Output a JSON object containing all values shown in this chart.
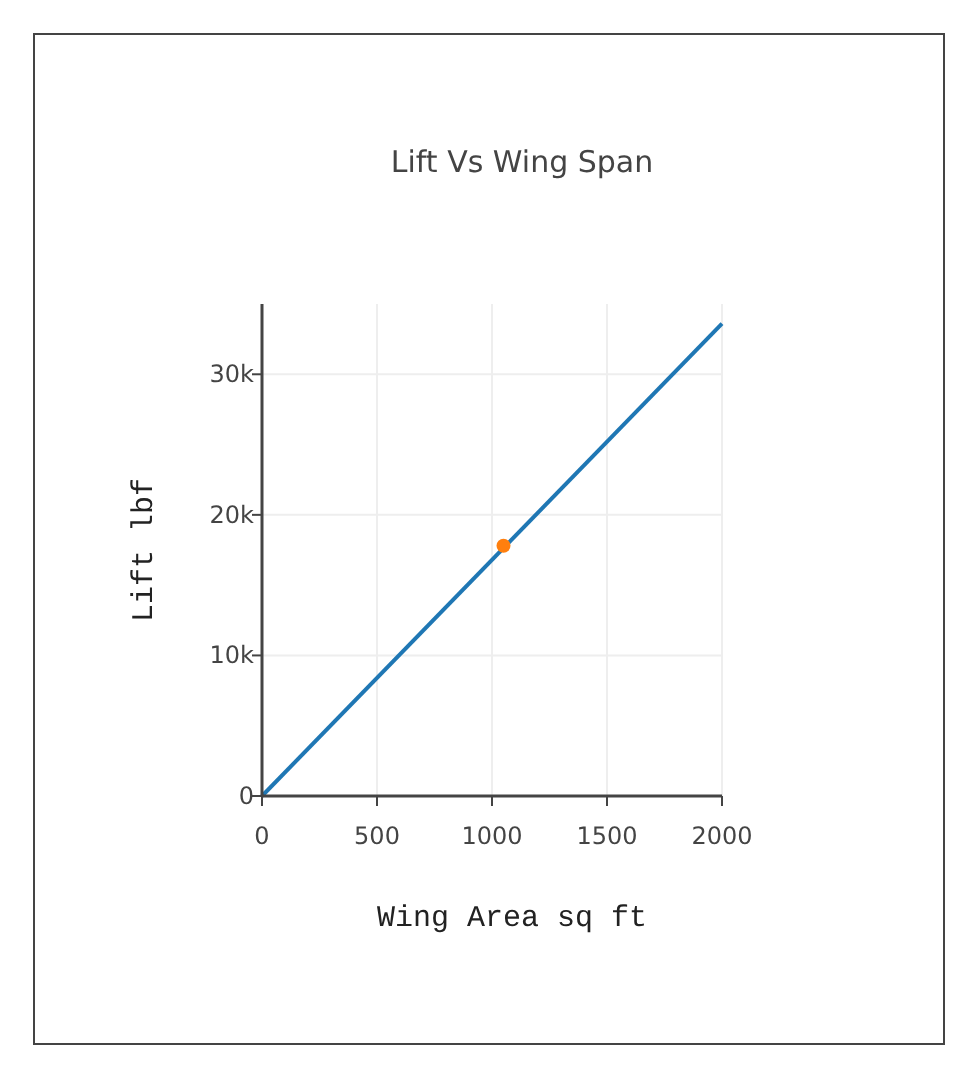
{
  "chart_data": {
    "type": "line",
    "title": "Lift Vs Wing Span",
    "xlabel": "Wing Area sq ft",
    "ylabel": "Lift lbf",
    "xlim": [
      0,
      2000
    ],
    "ylim": [
      0,
      35000
    ],
    "xticks": [
      0,
      500,
      1000,
      1500,
      2000
    ],
    "yticks": [
      {
        "value": 0,
        "label": "0"
      },
      {
        "value": 10000,
        "label": "10k"
      },
      {
        "value": 20000,
        "label": "20k"
      },
      {
        "value": 30000,
        "label": "30k"
      }
    ],
    "grid": true,
    "marker": "none",
    "series": [
      {
        "color": "#1f77b4",
        "x": [
          0,
          2000
        ],
        "values": [
          0,
          33600
        ]
      },
      {
        "type": "scatter",
        "color": "#ff7f0e",
        "x": [
          1050
        ],
        "values": [
          17800
        ],
        "marker": "circle"
      }
    ]
  }
}
